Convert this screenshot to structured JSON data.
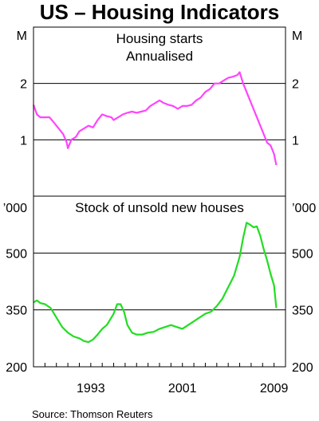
{
  "title": "US – Housing Indicators",
  "source": "Source: Thomson Reuters",
  "chart_data": [
    {
      "type": "line",
      "panel": "top",
      "subtitle": [
        "Housing starts",
        "Annualised"
      ],
      "unit_left": "M",
      "unit_right": "M",
      "ylim": [
        0,
        3
      ],
      "yticks": [
        1,
        2
      ],
      "xlim": [
        1988,
        2010
      ],
      "color": "#ff44ff",
      "series": [
        {
          "x": [
            1988.0,
            1988.3,
            1988.6,
            1989.0,
            1989.4,
            1989.8,
            1990.2,
            1990.6,
            1990.9,
            1991.0,
            1991.3,
            1991.7,
            1992.0,
            1992.4,
            1992.8,
            1993.2,
            1993.6,
            1994.0,
            1994.4,
            1994.8,
            1995.0,
            1995.4,
            1995.8,
            1996.2,
            1996.6,
            1997.0,
            1997.4,
            1997.8,
            1998.2,
            1998.6,
            1999.0,
            1999.4,
            1999.8,
            2000.2,
            2000.6,
            2001.0,
            2001.4,
            2001.8,
            2002.2,
            2002.6,
            2003.0,
            2003.4,
            2003.8,
            2004.2,
            2004.6,
            2005.0,
            2005.4,
            2005.8,
            2006.0,
            2006.3,
            2006.6,
            2006.9,
            2007.2,
            2007.5,
            2007.8,
            2008.1,
            2008.4,
            2008.7,
            2009.0,
            2009.2
          ],
          "y": [
            1.62,
            1.45,
            1.4,
            1.4,
            1.4,
            1.3,
            1.2,
            1.1,
            0.95,
            0.85,
            1.0,
            1.05,
            1.15,
            1.2,
            1.25,
            1.22,
            1.35,
            1.45,
            1.42,
            1.4,
            1.35,
            1.4,
            1.45,
            1.48,
            1.5,
            1.48,
            1.5,
            1.52,
            1.6,
            1.65,
            1.7,
            1.65,
            1.62,
            1.6,
            1.55,
            1.6,
            1.6,
            1.62,
            1.7,
            1.75,
            1.85,
            1.9,
            2.0,
            2.0,
            2.05,
            2.1,
            2.12,
            2.15,
            2.2,
            2.0,
            1.85,
            1.7,
            1.55,
            1.4,
            1.25,
            1.1,
            0.95,
            0.9,
            0.75,
            0.55
          ]
        }
      ]
    },
    {
      "type": "line",
      "panel": "bottom",
      "subtitle": [
        "Stock of unsold new houses"
      ],
      "unit_left": "’000",
      "unit_right": "’000",
      "ylim": [
        200,
        650
      ],
      "yticks": [
        200,
        350,
        500
      ],
      "xlim": [
        1988,
        2010
      ],
      "xticks": [
        1993,
        2001,
        2009
      ],
      "color": "#22dd22",
      "series": [
        {
          "x": [
            1988.0,
            1988.3,
            1988.6,
            1989.0,
            1989.5,
            1990.0,
            1990.5,
            1991.0,
            1991.5,
            1992.0,
            1992.4,
            1992.8,
            1993.2,
            1993.6,
            1994.0,
            1994.4,
            1994.8,
            1995.0,
            1995.3,
            1995.6,
            1995.9,
            1996.2,
            1996.6,
            1997.0,
            1997.5,
            1998.0,
            1998.5,
            1999.0,
            1999.5,
            2000.0,
            2000.5,
            2001.0,
            2001.5,
            2002.0,
            2002.5,
            2003.0,
            2003.5,
            2004.0,
            2004.5,
            2005.0,
            2005.5,
            2006.0,
            2006.3,
            2006.6,
            2006.9,
            2007.2,
            2007.5,
            2007.8,
            2008.1,
            2008.4,
            2008.7,
            2009.0,
            2009.2
          ],
          "y": [
            370,
            375,
            368,
            365,
            355,
            330,
            305,
            290,
            280,
            275,
            268,
            265,
            272,
            285,
            300,
            310,
            330,
            340,
            365,
            365,
            345,
            310,
            290,
            285,
            285,
            290,
            292,
            300,
            305,
            310,
            305,
            300,
            310,
            320,
            330,
            340,
            345,
            360,
            380,
            410,
            440,
            490,
            540,
            580,
            575,
            568,
            570,
            545,
            510,
            480,
            445,
            415,
            355
          ]
        }
      ]
    }
  ]
}
